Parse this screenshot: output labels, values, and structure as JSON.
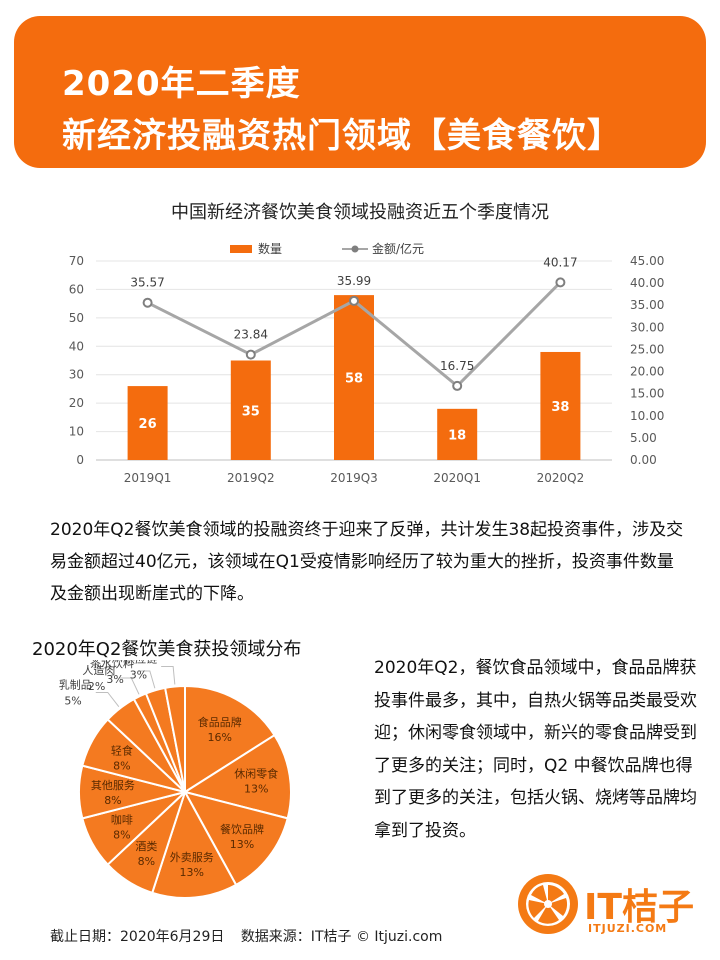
{
  "banner": {
    "line1": "2020年二季度",
    "line2": "新经济投融资热门领域【美食餐饮】"
  },
  "colors": {
    "accent": "#f46c0e",
    "bar": "#f46c0e",
    "line": "#a6a6a6",
    "pie": "#f47a20"
  },
  "chart_data": [
    {
      "type": "bar",
      "title": "中国新经济餐饮美食领域投融资近五个季度情况",
      "categories": [
        "2019Q1",
        "2019Q2",
        "2019Q3",
        "2020Q1",
        "2020Q2"
      ],
      "series": [
        {
          "name": "数量",
          "type": "bar",
          "axis": "left",
          "values": [
            26,
            35,
            58,
            18,
            38
          ]
        },
        {
          "name": "金额/亿元",
          "type": "line",
          "axis": "right",
          "values": [
            35.57,
            23.84,
            35.99,
            16.75,
            40.17
          ]
        }
      ],
      "y_left": {
        "min": 0,
        "max": 70,
        "ticks": [
          "0",
          "10",
          "20",
          "30",
          "40",
          "50",
          "60",
          "70"
        ]
      },
      "y_right": {
        "min": 0,
        "max": 45,
        "ticks": [
          "0.00",
          "5.00",
          "10.00",
          "15.00",
          "20.00",
          "25.00",
          "30.00",
          "35.00",
          "40.00",
          "45.00"
        ]
      },
      "legend_position": "top",
      "grid": true
    },
    {
      "type": "pie",
      "title": "2020年Q2餐饮美食获投领域分布",
      "slices": [
        {
          "label": "食品品牌",
          "value": 16,
          "pct": "16%"
        },
        {
          "label": "休闲零食",
          "value": 13,
          "pct": "13%"
        },
        {
          "label": "餐饮品牌",
          "value": 13,
          "pct": "13%"
        },
        {
          "label": "外卖服务",
          "value": 13,
          "pct": "13%"
        },
        {
          "label": "酒类",
          "value": 8,
          "pct": "8%"
        },
        {
          "label": "咖啡",
          "value": 8,
          "pct": "8%"
        },
        {
          "label": "其他服务",
          "value": 8,
          "pct": "8%"
        },
        {
          "label": "轻食",
          "value": 8,
          "pct": "8%"
        },
        {
          "label": "乳制品",
          "value": 5,
          "pct": "5%"
        },
        {
          "label": "人造肉",
          "value": 2,
          "pct": "2%"
        },
        {
          "label": "茶水饮料",
          "value": 3,
          "pct": "3%"
        },
        {
          "label": "供应链",
          "value": 3,
          "pct": "3%"
        }
      ]
    }
  ],
  "paragraph1": "2020年Q2餐饮美食领域的投融资终于迎来了反弹，共计发生38起投资事件，涉及交易金额超过40亿元，该领域在Q1受疫情影响经历了较为重大的挫折，投资事件数量及金额出现断崖式的下降。",
  "paragraph2": "2020年Q2，餐饮食品领域中，食品品牌获投事件最多，其中，自热火锅等品类最受欢迎；休闲零食领域中，新兴的零食品牌受到了更多的关注；同时，Q2 中餐饮品牌也得到了更多的关注，包括火锅、烧烤等品牌均拿到了投资。",
  "footer": {
    "date": "截止日期：2020年6月29日",
    "source": "数据来源：IT桔子 © Itjuzi.com"
  },
  "logo": {
    "name": "IT桔子",
    "domain": "ITJUZI.COM"
  }
}
